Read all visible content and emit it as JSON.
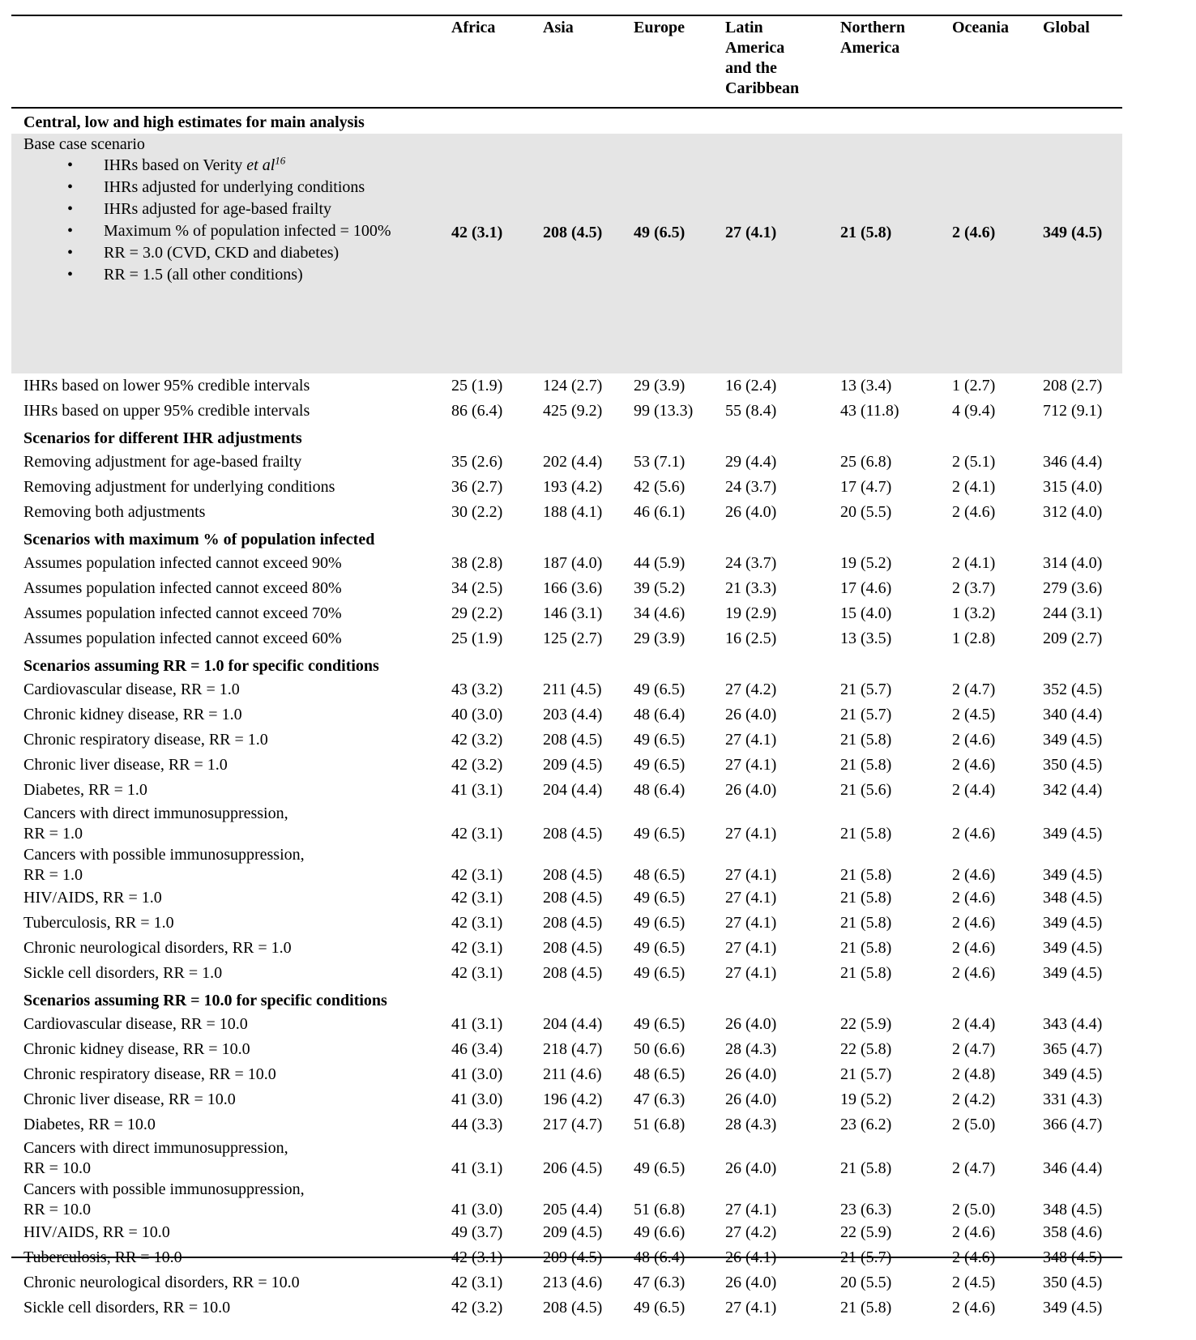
{
  "columns": [
    "",
    "Africa",
    "Asia",
    "Europe",
    "Latin\nAmerica\nand the\nCaribbean",
    "Northern\nAmerica",
    "Oceania",
    "Global"
  ],
  "base_case": {
    "section": "Central, low and high estimates for main analysis",
    "title": "Base case scenario",
    "bullets": [
      {
        "text": "IHRs based on Verity ",
        "italic": "et al",
        "sup": "16"
      },
      {
        "text": "IHRs adjusted for underlying conditions"
      },
      {
        "text": "IHRs adjusted for age-based frailty"
      },
      {
        "text": "Maximum % of population infected = 100%"
      },
      {
        "text": "RR = 3.0 (CVD, CKD and diabetes)"
      },
      {
        "text": "RR = 1.5 (all other conditions)"
      }
    ],
    "values": [
      "42 (3.1)",
      "208 (4.5)",
      "49 (6.5)",
      "27 (4.1)",
      "21 (5.8)",
      "2 (4.6)",
      "349 (4.5)"
    ],
    "highlight_color": "#e5e5e5"
  },
  "sections": [
    {
      "title": "",
      "rows": [
        {
          "label": "IHRs based on lower 95% credible intervals",
          "values": [
            "25 (1.9)",
            "124 (2.7)",
            "29 (3.9)",
            "16 (2.4)",
            "13 (3.4)",
            "1 (2.7)",
            "208 (2.7)"
          ]
        },
        {
          "label": "IHRs based on upper 95% credible intervals",
          "values": [
            "86 (6.4)",
            "425 (9.2)",
            "99 (13.3)",
            "55 (8.4)",
            "43 (11.8)",
            "4 (9.4)",
            "712 (9.1)"
          ]
        }
      ]
    },
    {
      "title": "Scenarios for different IHR adjustments",
      "rows": [
        {
          "label": "Removing adjustment for age-based frailty",
          "values": [
            "35 (2.6)",
            "202 (4.4)",
            "53 (7.1)",
            "29 (4.4)",
            "25 (6.8)",
            "2 (5.1)",
            "346 (4.4)"
          ]
        },
        {
          "label": "Removing adjustment for underlying conditions",
          "values": [
            "36 (2.7)",
            "193 (4.2)",
            "42 (5.6)",
            "24 (3.7)",
            "17 (4.7)",
            "2 (4.1)",
            "315 (4.0)"
          ]
        },
        {
          "label": "Removing both adjustments",
          "values": [
            "30 (2.2)",
            "188 (4.1)",
            "46 (6.1)",
            "26 (4.0)",
            "20 (5.5)",
            "2 (4.6)",
            "312 (4.0)"
          ]
        }
      ]
    },
    {
      "title": "Scenarios with maximum % of population infected",
      "rows": [
        {
          "label": "Assumes population infected cannot exceed 90%",
          "values": [
            "38 (2.8)",
            "187 (4.0)",
            "44 (5.9)",
            "24 (3.7)",
            "19 (5.2)",
            "2 (4.1)",
            "314 (4.0)"
          ]
        },
        {
          "label": "Assumes population infected cannot exceed 80%",
          "values": [
            "34 (2.5)",
            "166 (3.6)",
            "39 (5.2)",
            "21 (3.3)",
            "17 (4.6)",
            "2 (3.7)",
            "279 (3.6)"
          ]
        },
        {
          "label": "Assumes population infected cannot exceed 70%",
          "values": [
            "29 (2.2)",
            "146 (3.1)",
            "34 (4.6)",
            "19 (2.9)",
            "15 (4.0)",
            "1 (3.2)",
            "244 (3.1)"
          ]
        },
        {
          "label": "Assumes population infected cannot exceed 60%",
          "values": [
            "25 (1.9)",
            "125 (2.7)",
            "29 (3.9)",
            "16 (2.5)",
            "13 (3.5)",
            "1 (2.8)",
            "209 (2.7)"
          ]
        }
      ]
    },
    {
      "title": "Scenarios assuming RR = 1.0 for specific conditions",
      "rows": [
        {
          "label": "Cardiovascular disease, RR = 1.0",
          "values": [
            "43 (3.2)",
            "211 (4.5)",
            "49 (6.5)",
            "27 (4.2)",
            "21 (5.7)",
            "2 (4.7)",
            "352 (4.5)"
          ]
        },
        {
          "label": "Chronic kidney disease, RR = 1.0",
          "values": [
            "40 (3.0)",
            "203 (4.4)",
            "48 (6.4)",
            "26 (4.0)",
            "21 (5.7)",
            "2 (4.5)",
            "340 (4.4)"
          ]
        },
        {
          "label": "Chronic respiratory disease, RR = 1.0",
          "values": [
            "42 (3.2)",
            "208 (4.5)",
            "49 (6.5)",
            "27 (4.1)",
            "21 (5.8)",
            "2 (4.6)",
            "349 (4.5)"
          ]
        },
        {
          "label": "Chronic liver disease, RR = 1.0",
          "values": [
            "42 (3.2)",
            "209 (4.5)",
            "49 (6.5)",
            "27 (4.1)",
            "21 (5.8)",
            "2 (4.6)",
            "350 (4.5)"
          ]
        },
        {
          "label": "Diabetes, RR = 1.0",
          "values": [
            "41 (3.1)",
            "204 (4.4)",
            "48 (6.4)",
            "26 (4.0)",
            "21 (5.6)",
            "2 (4.4)",
            "342 (4.4)"
          ]
        },
        {
          "label": "Cancers with direct immunosuppression,\nRR = 1.0",
          "values": [
            "42 (3.1)",
            "208 (4.5)",
            "49 (6.5)",
            "27 (4.1)",
            "21 (5.8)",
            "2 (4.6)",
            "349 (4.5)"
          ]
        },
        {
          "label": "Cancers with possible immunosuppression,\nRR = 1.0",
          "values": [
            "42 (3.1)",
            "208 (4.5)",
            "48 (6.5)",
            "27 (4.1)",
            "21 (5.8)",
            "2 (4.6)",
            "349 (4.5)"
          ]
        },
        {
          "label": "HIV/AIDS, RR = 1.0",
          "values": [
            "42 (3.1)",
            "208 (4.5)",
            "49 (6.5)",
            "27 (4.1)",
            "21 (5.8)",
            "2 (4.6)",
            "348 (4.5)"
          ]
        },
        {
          "label": "Tuberculosis, RR = 1.0",
          "values": [
            "42 (3.1)",
            "208 (4.5)",
            "49 (6.5)",
            "27 (4.1)",
            "21 (5.8)",
            "2 (4.6)",
            "349 (4.5)"
          ]
        },
        {
          "label": "Chronic neurological disorders, RR = 1.0",
          "values": [
            "42 (3.1)",
            "208 (4.5)",
            "49 (6.5)",
            "27 (4.1)",
            "21 (5.8)",
            "2 (4.6)",
            "349 (4.5)"
          ]
        },
        {
          "label": "Sickle cell disorders, RR = 1.0",
          "values": [
            "42 (3.1)",
            "208 (4.5)",
            "49 (6.5)",
            "27 (4.1)",
            "21 (5.8)",
            "2 (4.6)",
            "349 (4.5)"
          ]
        }
      ]
    },
    {
      "title": "Scenarios assuming RR = 10.0 for specific conditions",
      "rows": [
        {
          "label": "Cardiovascular disease, RR = 10.0",
          "values": [
            "41 (3.1)",
            "204 (4.4)",
            "49 (6.5)",
            "26 (4.0)",
            "22 (5.9)",
            "2 (4.4)",
            "343 (4.4)"
          ]
        },
        {
          "label": "Chronic kidney disease, RR = 10.0",
          "values": [
            "46 (3.4)",
            "218 (4.7)",
            "50 (6.6)",
            "28 (4.3)",
            "22 (5.8)",
            "2 (4.7)",
            "365 (4.7)"
          ]
        },
        {
          "label": "Chronic respiratory disease, RR = 10.0",
          "values": [
            "41 (3.0)",
            "211 (4.6)",
            "48 (6.5)",
            "26 (4.0)",
            "21 (5.7)",
            "2 (4.8)",
            "349 (4.5)"
          ]
        },
        {
          "label": "Chronic liver disease, RR = 10.0",
          "values": [
            "41 (3.0)",
            "196 (4.2)",
            "47 (6.3)",
            "26 (4.0)",
            "19 (5.2)",
            "2 (4.2)",
            "331 (4.3)"
          ]
        },
        {
          "label": "Diabetes, RR = 10.0",
          "values": [
            "44 (3.3)",
            "217 (4.7)",
            "51 (6.8)",
            "28 (4.3)",
            "23 (6.2)",
            "2 (5.0)",
            "366 (4.7)"
          ]
        },
        {
          "label": "Cancers with direct immunosuppression,\nRR = 10.0",
          "values": [
            "41 (3.1)",
            "206 (4.5)",
            "49 (6.5)",
            "26 (4.0)",
            "21 (5.8)",
            "2 (4.7)",
            "346 (4.4)"
          ]
        },
        {
          "label": "Cancers with possible immunosuppression,\nRR = 10.0",
          "values": [
            "41 (3.0)",
            "205 (4.4)",
            "51 (6.8)",
            "27 (4.1)",
            "23 (6.3)",
            "2 (5.0)",
            "348 (4.5)"
          ]
        },
        {
          "label": "HIV/AIDS, RR = 10.0",
          "values": [
            "49 (3.7)",
            "209 (4.5)",
            "49 (6.6)",
            "27 (4.2)",
            "22 (5.9)",
            "2 (4.6)",
            "358 (4.6)"
          ]
        },
        {
          "label": "Tuberculosis, RR = 10.0",
          "values": [
            "42 (3.1)",
            "209 (4.5)",
            "48 (6.4)",
            "26 (4.1)",
            "21 (5.7)",
            "2 (4.6)",
            "348 (4.5)"
          ]
        },
        {
          "label": "Chronic neurological disorders, RR = 10.0",
          "values": [
            "42 (3.1)",
            "213 (4.6)",
            "47 (6.3)",
            "26 (4.0)",
            "20 (5.5)",
            "2 (4.5)",
            "350 (4.5)"
          ]
        },
        {
          "label": "Sickle cell disorders, RR = 10.0",
          "values": [
            "42 (3.2)",
            "208 (4.5)",
            "49 (6.5)",
            "27 (4.1)",
            "21 (5.8)",
            "2 (4.6)",
            "349 (4.5)"
          ]
        }
      ]
    }
  ]
}
